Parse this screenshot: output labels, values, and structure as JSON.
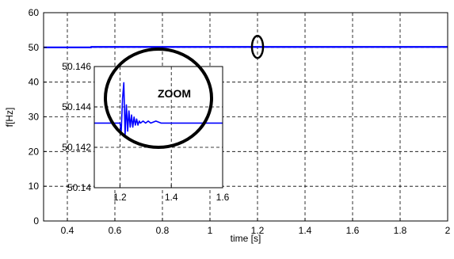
{
  "chart_data": [
    {
      "type": "line",
      "title": "",
      "xlabel": "time [s]",
      "ylabel": "f[Hz]",
      "xlim": [
        0.3,
        2.0
      ],
      "ylim": [
        0,
        60
      ],
      "xticks": [
        "0.4",
        "0.6",
        "0.8",
        "1",
        "1.2",
        "1.4",
        "1.6",
        "1.8",
        "2"
      ],
      "xtick_values": [
        0.4,
        0.6,
        0.8,
        1.0,
        1.2,
        1.4,
        1.6,
        1.8,
        2.0
      ],
      "yticks": [
        "0",
        "10",
        "20",
        "30",
        "40",
        "50",
        "60"
      ],
      "ytick_values": [
        0,
        10,
        20,
        30,
        40,
        50,
        60
      ],
      "grid": true,
      "series": [
        {
          "color": "#0000ff",
          "x": [
            0.3,
            0.5,
            0.5,
            2.0
          ],
          "y": [
            50.0,
            50.0,
            50.14,
            50.14
          ]
        }
      ],
      "annotation": {
        "shape": "ellipse",
        "x": 1.2,
        "y": 50.14
      }
    },
    {
      "type": "line",
      "title": "",
      "label": "ZOOM",
      "xlim": [
        1.1,
        1.6
      ],
      "ylim": [
        50.14,
        50.146
      ],
      "xticks": [
        "1.2",
        "1.4",
        "1.6"
      ],
      "xtick_values": [
        1.2,
        1.4,
        1.6
      ],
      "yticks": [
        "50.14",
        "50.142",
        "50.144",
        "50.146"
      ],
      "ytick_values": [
        50.14,
        50.142,
        50.144,
        50.146
      ],
      "grid": true,
      "series": [
        {
          "color": "#0000ff",
          "x": [
            1.1,
            1.2,
            1.205,
            1.21,
            1.215,
            1.22,
            1.225,
            1.23,
            1.235,
            1.24,
            1.245,
            1.25,
            1.255,
            1.26,
            1.265,
            1.27,
            1.275,
            1.28,
            1.29,
            1.3,
            1.31,
            1.32,
            1.34,
            1.36,
            1.6
          ],
          "y": [
            50.1432,
            50.1432,
            50.1428,
            50.1444,
            50.1452,
            50.1426,
            50.1441,
            50.1428,
            50.1438,
            50.143,
            50.1436,
            50.143,
            50.1435,
            50.1431,
            50.1434,
            50.1431,
            50.1433,
            50.1432,
            50.1433,
            50.1432,
            50.1433,
            50.1432,
            50.1433,
            50.1432,
            50.1432
          ]
        }
      ]
    }
  ]
}
